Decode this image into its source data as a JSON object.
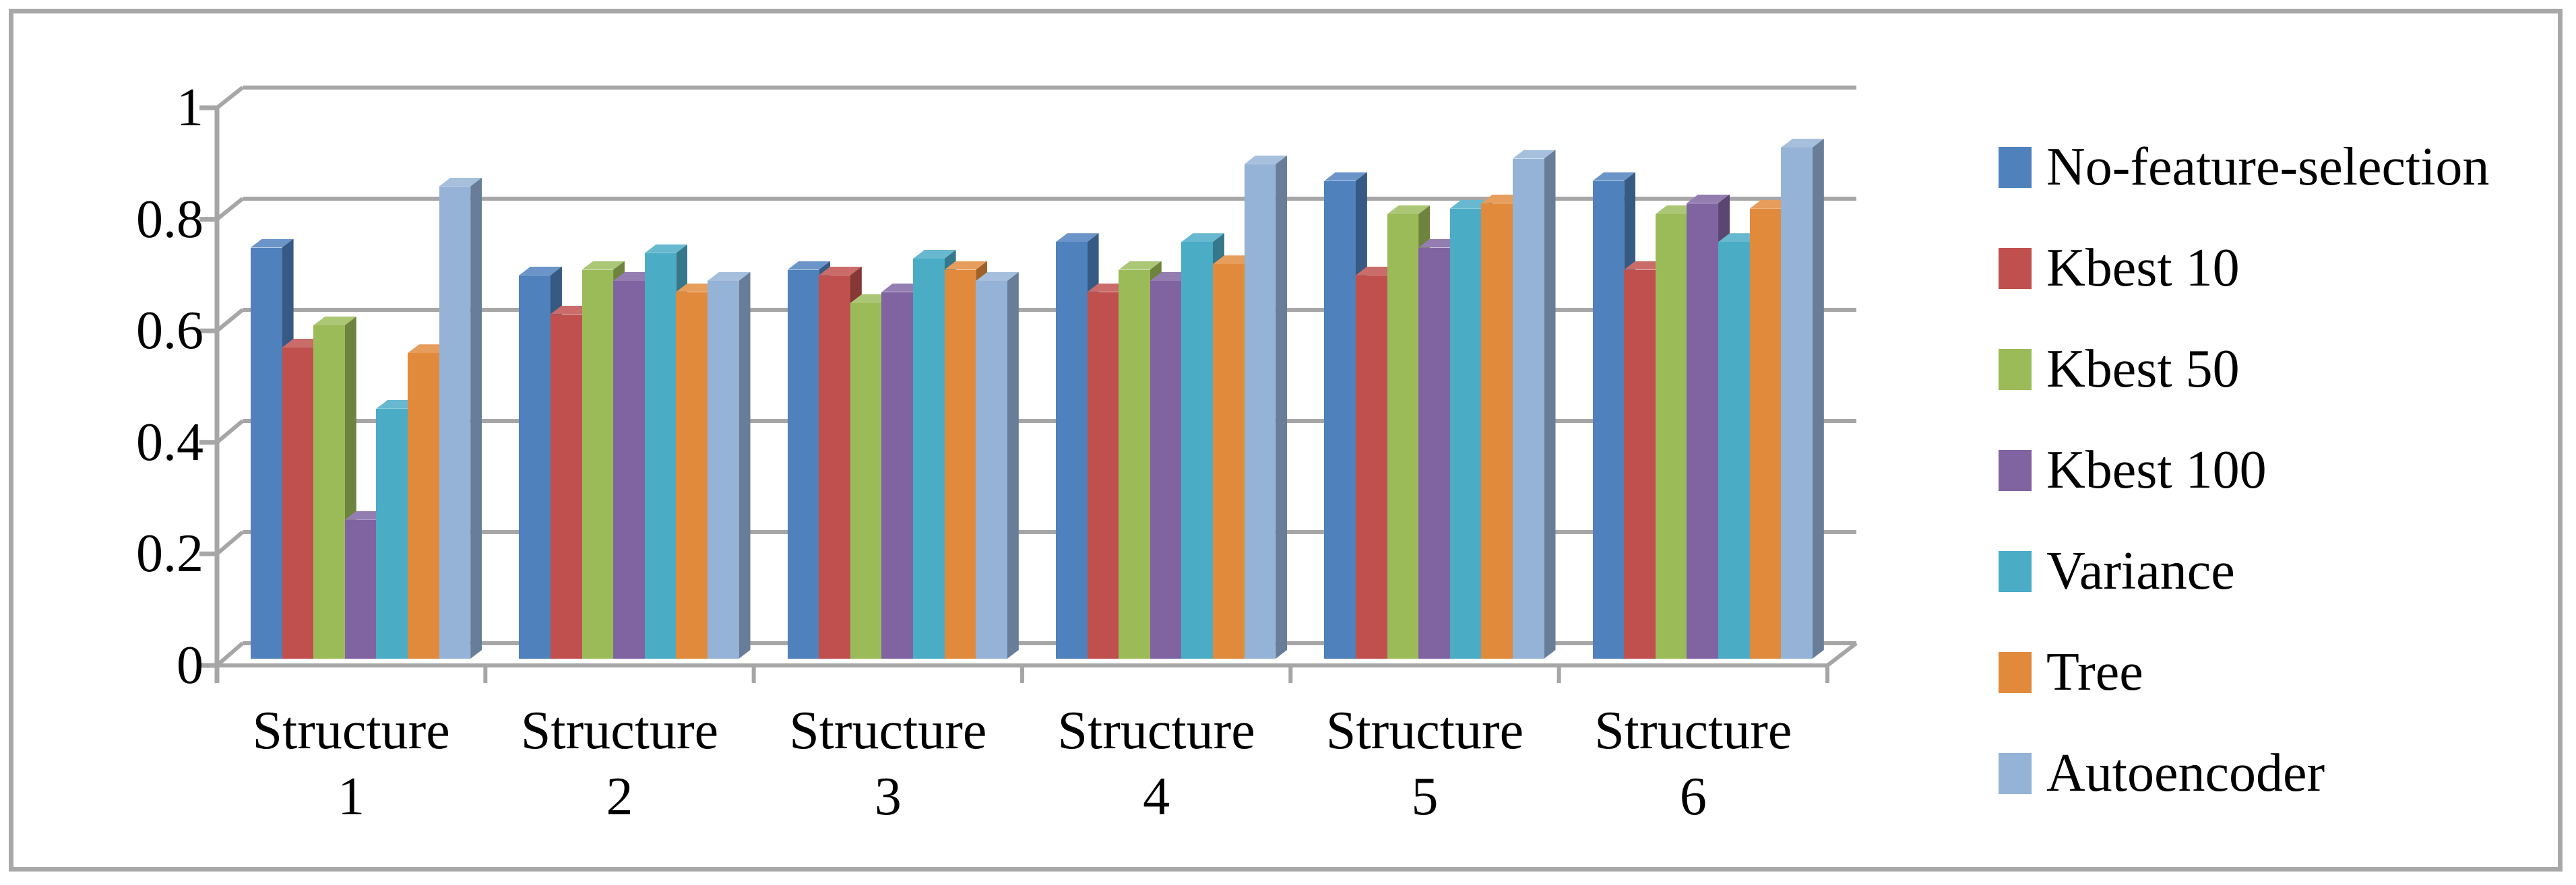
{
  "chart_data": {
    "type": "bar",
    "style": "3d-clustered-column",
    "title": "",
    "xlabel": "",
    "ylabel": "",
    "categories": [
      {
        "label": "Structure 1",
        "label_lines": [
          "Structure",
          "1"
        ]
      },
      {
        "label": "Structure 2",
        "label_lines": [
          "Structure",
          "2"
        ]
      },
      {
        "label": "Structure 3",
        "label_lines": [
          "Structure",
          "3"
        ]
      },
      {
        "label": "Structure 4",
        "label_lines": [
          "Structure",
          "4"
        ]
      },
      {
        "label": "Structure 5",
        "label_lines": [
          "Structure",
          "5"
        ]
      },
      {
        "label": "Structure 6",
        "label_lines": [
          "Structure",
          "6"
        ]
      }
    ],
    "series": [
      {
        "name": "No-feature-selection",
        "color": "#4F81BD",
        "values": [
          0.74,
          0.69,
          0.7,
          0.75,
          0.86,
          0.86
        ]
      },
      {
        "name": "Kbest 10",
        "color": "#C0504D",
        "values": [
          0.56,
          0.62,
          0.69,
          0.66,
          0.69,
          0.7
        ]
      },
      {
        "name": "Kbest 50",
        "color": "#9BBB59",
        "values": [
          0.6,
          0.7,
          0.64,
          0.7,
          0.8,
          0.8
        ]
      },
      {
        "name": "Kbest 100",
        "color": "#8064A2",
        "values": [
          0.25,
          0.68,
          0.66,
          0.68,
          0.74,
          0.82
        ]
      },
      {
        "name": "Variance",
        "color": "#4BACC6",
        "values": [
          0.45,
          0.73,
          0.72,
          0.75,
          0.81,
          0.75
        ]
      },
      {
        "name": "Tree",
        "color": "#E28A3C",
        "values": [
          0.55,
          0.66,
          0.7,
          0.71,
          0.82,
          0.81
        ]
      },
      {
        "name": "Autoencoder",
        "color": "#95B3D7",
        "values": [
          0.85,
          0.68,
          0.68,
          0.89,
          0.9,
          0.92
        ]
      }
    ],
    "ylim": [
      0,
      1
    ],
    "yticks": [
      {
        "value": 0,
        "label": "0"
      },
      {
        "value": 0.2,
        "label": "0.2"
      },
      {
        "value": 0.4,
        "label": "0.4"
      },
      {
        "value": 0.6,
        "label": "0.6"
      },
      {
        "value": 0.8,
        "label": "0.8"
      },
      {
        "value": 1,
        "label": "1"
      }
    ],
    "grid": true,
    "legend_position": "right",
    "frame_color": "#A8A8A8",
    "grid_color": "#A6A6A6",
    "text_color": "#000000"
  }
}
